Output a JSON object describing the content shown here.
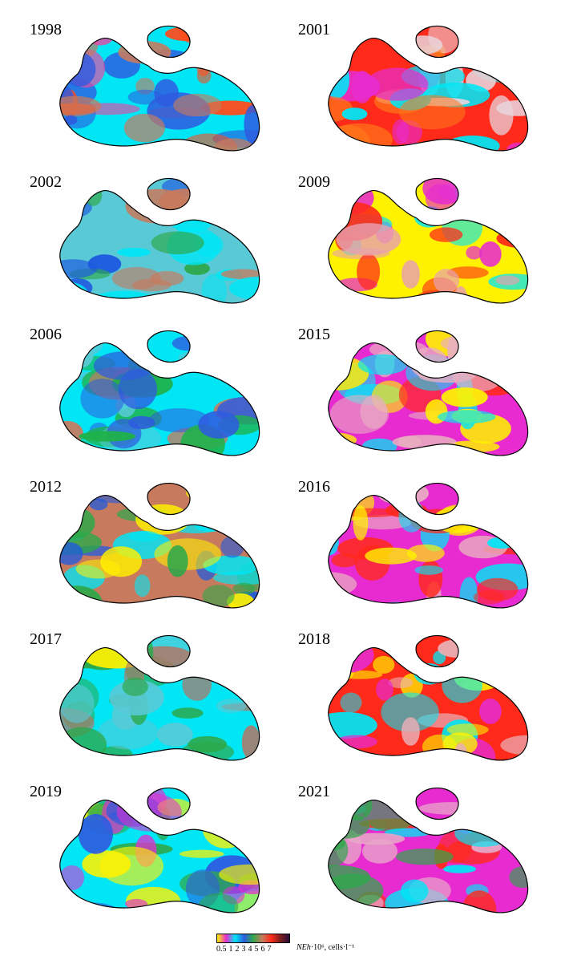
{
  "panels": [
    {
      "year": "1998",
      "scheme": [
        "#00e6f5",
        "#e24ba8",
        "#ff4a1a",
        "#c77a5e",
        "#2e5be0"
      ]
    },
    {
      "year": "2001",
      "scheme": [
        "#ff2a1a",
        "#e72bd0",
        "#e9d3db",
        "#ff7a1a",
        "#00e6f5"
      ]
    },
    {
      "year": "2002",
      "scheme": [
        "#5ac9d6",
        "#1e5ae0",
        "#c77a5e",
        "#2da84a",
        "#00e6f5"
      ]
    },
    {
      "year": "2009",
      "scheme": [
        "#fff200",
        "#ff2a1a",
        "#e8a0b0",
        "#00e6f5",
        "#e72bd0"
      ]
    },
    {
      "year": "2006",
      "scheme": [
        "#00e6f5",
        "#1fb24a",
        "#c77a5e",
        "#5ac9d6",
        "#2e5be0"
      ]
    },
    {
      "year": "2015",
      "scheme": [
        "#e72bd0",
        "#00e6f5",
        "#e8b0c0",
        "#fff200",
        "#ff2a1a"
      ]
    },
    {
      "year": "2012",
      "scheme": [
        "#c77a5e",
        "#1e5ae0",
        "#00e6f5",
        "#2da84a",
        "#fff200"
      ]
    },
    {
      "year": "2016",
      "scheme": [
        "#e72bd0",
        "#fff200",
        "#e8b0c0",
        "#00e6f5",
        "#ff2a1a"
      ]
    },
    {
      "year": "2017",
      "scheme": [
        "#00e6f5",
        "#b87260",
        "#2da84a",
        "#5ac9d6",
        "#fff200"
      ]
    },
    {
      "year": "2018",
      "scheme": [
        "#ff2a1a",
        "#fff200",
        "#e8b0b8",
        "#00e6f5",
        "#e72bd0"
      ]
    },
    {
      "year": "2019",
      "scheme": [
        "#00e6f5",
        "#e72bd0",
        "#2e5be0",
        "#2da84a",
        "#fff200"
      ]
    },
    {
      "year": "2021",
      "scheme": [
        "#e72bd0",
        "#e8a8c8",
        "#ff2a1a",
        "#00e6f5",
        "#2da84a"
      ]
    }
  ],
  "legend": {
    "ticks": [
      "0.5",
      "1",
      "2",
      "3",
      "4",
      "5",
      "6",
      "7"
    ],
    "unit_var": "NEh",
    "unit_rest": "·10⁶, cells·l⁻¹",
    "colors": [
      "#fff200",
      "#e72bd0",
      "#00e6f5",
      "#2e5be0",
      "#2da84a",
      "#c77a5e",
      "#ff2a1a",
      "#7a1e1e",
      "#2a0a3a"
    ]
  }
}
